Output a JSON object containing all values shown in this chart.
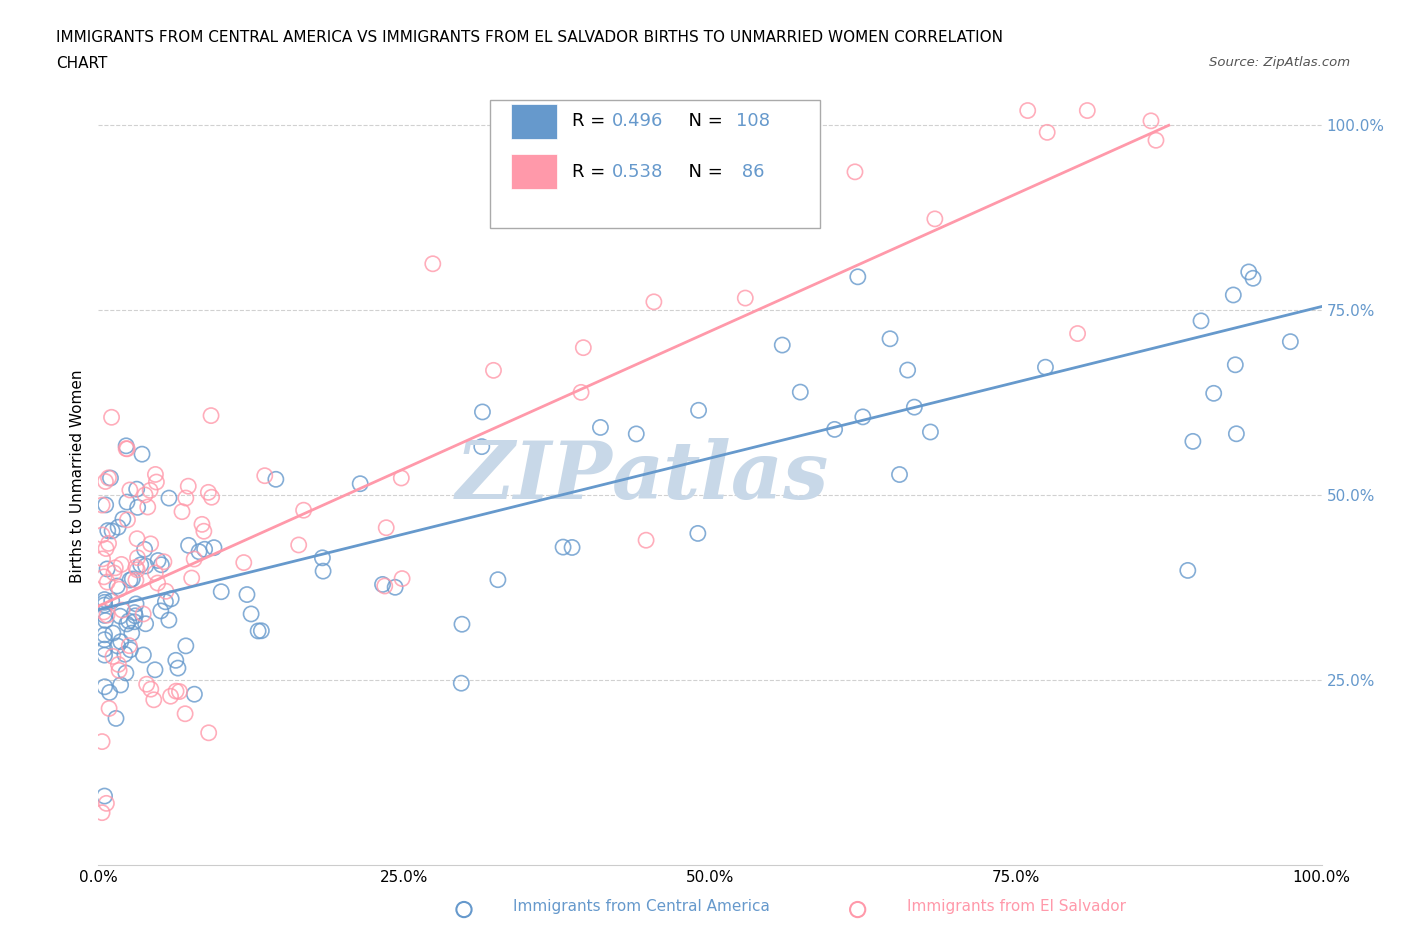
{
  "title_line1": "IMMIGRANTS FROM CENTRAL AMERICA VS IMMIGRANTS FROM EL SALVADOR BIRTHS TO UNMARRIED WOMEN CORRELATION",
  "title_line2": "CHART",
  "source_text": "Source: ZipAtlas.com",
  "ylabel": "Births to Unmarried Women",
  "xmin": 0.0,
  "xmax": 1.0,
  "ymin": 0.0,
  "ymax": 1.05,
  "xtick_labels": [
    "0.0%",
    "",
    "",
    "",
    "",
    "25.0%",
    "",
    "",
    "",
    "",
    "50.0%",
    "",
    "",
    "",
    "",
    "75.0%",
    "",
    "",
    "",
    "",
    "100.0%"
  ],
  "xtick_positions": [
    0.0,
    0.05,
    0.1,
    0.15,
    0.2,
    0.25,
    0.3,
    0.35,
    0.4,
    0.45,
    0.5,
    0.55,
    0.6,
    0.65,
    0.7,
    0.75,
    0.8,
    0.85,
    0.9,
    0.95,
    1.0
  ],
  "ytick_labels": [
    "25.0%",
    "50.0%",
    "75.0%",
    "100.0%"
  ],
  "ytick_positions": [
    0.25,
    0.5,
    0.75,
    1.0
  ],
  "color_blue": "#6699CC",
  "color_pink": "#FF99AA",
  "legend_R_blue": "0.496",
  "legend_N_blue": "108",
  "legend_R_pink": "0.538",
  "legend_N_pink": "86",
  "blue_line_x": [
    0.0,
    1.0
  ],
  "blue_line_y": [
    0.345,
    0.755
  ],
  "pink_line_x": [
    0.0,
    0.875
  ],
  "pink_line_y": [
    0.35,
    1.0
  ],
  "grid_color": "#cccccc",
  "watermark_color": "#c8d8e8"
}
